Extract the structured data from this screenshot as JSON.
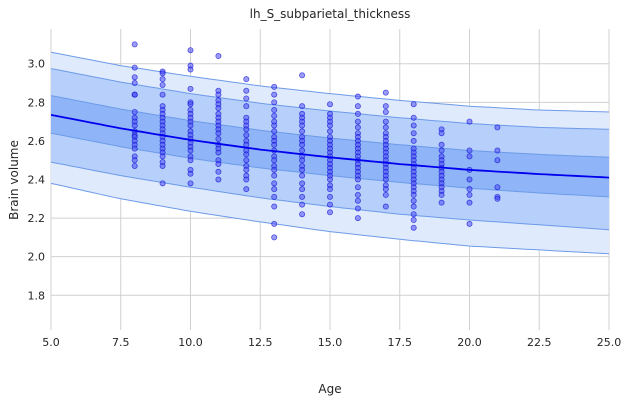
{
  "chart_data": {
    "type": "scatter",
    "title": "lh_S_subparietal_thickness",
    "xlabel": "Age",
    "ylabel": "Brain volume",
    "xlim": [
      5,
      25
    ],
    "ylim": [
      1.62,
      3.18
    ],
    "xticks": [
      5.0,
      7.5,
      10.0,
      12.5,
      15.0,
      17.5,
      20.0,
      22.5,
      25.0
    ],
    "xtick_labels": [
      "5.0",
      "7.5",
      "10.0",
      "12.5",
      "15.0",
      "17.5",
      "20.0",
      "22.5",
      "25.0"
    ],
    "yticks": [
      1.8,
      2.0,
      2.2,
      2.4,
      2.6,
      2.8,
      3.0
    ],
    "ytick_labels": [
      "1.8",
      "2.0",
      "2.2",
      "2.4",
      "2.6",
      "2.8",
      "3.0"
    ],
    "grid": true,
    "colors": {
      "median": "#0000ee",
      "points_fill": "#4a4af5",
      "points_edge": "#0000cc",
      "band_outer": "#dfeafd",
      "band_mid": "#b7cffb",
      "band_inner": "#8fb4f7",
      "band_edge": "#6d9be8"
    },
    "median_curve": {
      "x": [
        5,
        7.5,
        10,
        12.5,
        15,
        17.5,
        20,
        22.5,
        25
      ],
      "y": [
        2.735,
        2.665,
        2.605,
        2.555,
        2.515,
        2.48,
        2.45,
        2.428,
        2.41
      ]
    },
    "bands": [
      {
        "name": "outer",
        "lower": [
          2.38,
          2.3,
          2.235,
          2.18,
          2.13,
          2.09,
          2.055,
          2.035,
          2.015
        ],
        "upper": [
          3.06,
          2.99,
          2.935,
          2.885,
          2.845,
          2.81,
          2.78,
          2.76,
          2.75
        ]
      },
      {
        "name": "middle",
        "lower": [
          2.49,
          2.42,
          2.36,
          2.305,
          2.26,
          2.22,
          2.19,
          2.165,
          2.14
        ],
        "upper": [
          2.975,
          2.905,
          2.845,
          2.795,
          2.755,
          2.72,
          2.69,
          2.67,
          2.66
        ]
      },
      {
        "name": "inner",
        "lower": [
          2.64,
          2.57,
          2.51,
          2.46,
          2.42,
          2.385,
          2.355,
          2.33,
          2.31
        ],
        "upper": [
          2.835,
          2.765,
          2.705,
          2.655,
          2.615,
          2.58,
          2.55,
          2.53,
          2.515
        ]
      }
    ],
    "points": [
      {
        "x": 8,
        "ys": [
          3.1,
          2.98,
          2.93,
          2.9,
          2.84,
          2.84,
          2.75,
          2.72,
          2.7,
          2.68,
          2.65,
          2.63,
          2.62,
          2.6,
          2.58,
          2.56,
          2.52,
          2.5,
          2.47
        ]
      },
      {
        "x": 9,
        "ys": [
          2.96,
          2.95,
          2.92,
          2.89,
          2.84,
          2.78,
          2.76,
          2.74,
          2.72,
          2.7,
          2.68,
          2.66,
          2.64,
          2.62,
          2.6,
          2.58,
          2.56,
          2.54,
          2.52,
          2.49,
          2.47,
          2.38
        ]
      },
      {
        "x": 10,
        "ys": [
          3.07,
          2.99,
          2.97,
          2.87,
          2.8,
          2.79,
          2.76,
          2.74,
          2.72,
          2.7,
          2.68,
          2.65,
          2.63,
          2.61,
          2.59,
          2.57,
          2.55,
          2.52,
          2.5,
          2.45,
          2.43,
          2.38
        ]
      },
      {
        "x": 11,
        "ys": [
          3.04,
          2.86,
          2.84,
          2.81,
          2.79,
          2.77,
          2.74,
          2.72,
          2.7,
          2.68,
          2.66,
          2.64,
          2.61,
          2.58,
          2.56,
          2.54,
          2.5,
          2.48,
          2.44,
          2.4
        ]
      },
      {
        "x": 12,
        "ys": [
          2.92,
          2.86,
          2.82,
          2.78,
          2.72,
          2.7,
          2.68,
          2.66,
          2.63,
          2.6,
          2.58,
          2.55,
          2.53,
          2.5,
          2.47,
          2.45,
          2.42,
          2.4,
          2.35
        ]
      },
      {
        "x": 13,
        "ys": [
          2.88,
          2.84,
          2.8,
          2.76,
          2.73,
          2.7,
          2.68,
          2.65,
          2.62,
          2.6,
          2.58,
          2.55,
          2.52,
          2.5,
          2.47,
          2.45,
          2.42,
          2.38,
          2.35,
          2.31,
          2.26,
          2.17,
          2.1
        ]
      },
      {
        "x": 14,
        "ys": [
          2.94,
          2.78,
          2.74,
          2.72,
          2.7,
          2.68,
          2.65,
          2.62,
          2.6,
          2.58,
          2.55,
          2.52,
          2.5,
          2.47,
          2.45,
          2.42,
          2.38,
          2.35,
          2.31,
          2.27,
          2.22
        ]
      },
      {
        "x": 15,
        "ys": [
          2.79,
          2.74,
          2.72,
          2.7,
          2.68,
          2.65,
          2.62,
          2.6,
          2.58,
          2.56,
          2.54,
          2.52,
          2.5,
          2.48,
          2.46,
          2.44,
          2.42,
          2.4,
          2.37,
          2.35,
          2.31,
          2.27,
          2.23
        ]
      },
      {
        "x": 16,
        "ys": [
          2.83,
          2.78,
          2.74,
          2.7,
          2.67,
          2.64,
          2.62,
          2.6,
          2.58,
          2.56,
          2.54,
          2.52,
          2.5,
          2.48,
          2.46,
          2.44,
          2.42,
          2.4,
          2.36,
          2.32,
          2.29,
          2.25,
          2.2
        ]
      },
      {
        "x": 17,
        "ys": [
          2.85,
          2.78,
          2.75,
          2.7,
          2.67,
          2.64,
          2.62,
          2.6,
          2.58,
          2.56,
          2.54,
          2.52,
          2.5,
          2.48,
          2.46,
          2.44,
          2.42,
          2.4,
          2.37,
          2.35,
          2.32,
          2.26
        ]
      },
      {
        "x": 18,
        "ys": [
          2.79,
          2.72,
          2.68,
          2.64,
          2.6,
          2.56,
          2.54,
          2.52,
          2.5,
          2.48,
          2.46,
          2.44,
          2.42,
          2.4,
          2.38,
          2.36,
          2.34,
          2.32,
          2.29,
          2.26,
          2.22,
          2.19,
          2.15
        ]
      },
      {
        "x": 19,
        "ys": [
          2.66,
          2.64,
          2.58,
          2.55,
          2.52,
          2.5,
          2.48,
          2.46,
          2.44,
          2.42,
          2.4,
          2.38,
          2.36,
          2.34,
          2.32,
          2.28
        ]
      },
      {
        "x": 20,
        "ys": [
          2.7,
          2.55,
          2.52,
          2.45,
          2.4,
          2.35,
          2.32,
          2.28,
          2.17
        ]
      },
      {
        "x": 21,
        "ys": [
          2.67,
          2.55,
          2.5,
          2.36,
          2.31,
          2.3
        ]
      }
    ]
  }
}
